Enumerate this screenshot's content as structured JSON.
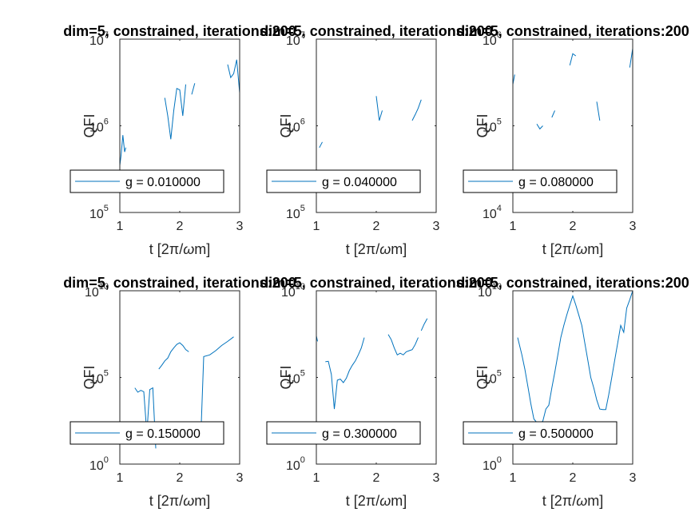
{
  "figure": {
    "background": "#ffffff",
    "axis_color": "#262626",
    "line_color": "#0072bd"
  },
  "chart_data": [
    {
      "type": "line",
      "title": "dim=5, constrained, iterations:200",
      "xlabel_text": "t [2",
      "xlabel_pi": "π",
      "xlabel_slash": "/",
      "xlabel_omega": "ω",
      "xlabel_end": "m]",
      "ylabel": "QFI",
      "xscale": "linear",
      "yscale": "log",
      "xlim": [
        1,
        3
      ],
      "ylim_exp": [
        5,
        7
      ],
      "xticks": [
        "1",
        "2",
        "3"
      ],
      "yticks": [
        {
          "base": "10",
          "exp": "5"
        },
        {
          "base": "10",
          "exp": "6"
        },
        {
          "base": "10",
          "exp": "7"
        }
      ],
      "legend": "top-left-inside",
      "grid": false,
      "series": [
        {
          "name": "g = 0.010000",
          "segments": [
            [
              [
                1.0,
                350000
              ],
              [
                1.02,
                450000
              ],
              [
                1.05,
                780000
              ],
              [
                1.08,
                500000
              ],
              [
                1.1,
                560000
              ]
            ],
            [
              [
                1.75,
                2100000
              ],
              [
                1.8,
                1300000
              ],
              [
                1.85,
                700000
              ],
              [
                1.9,
                1500000
              ],
              [
                1.95,
                2700000
              ],
              [
                2.0,
                2600000
              ],
              [
                2.05,
                1300000
              ],
              [
                2.1,
                3000000
              ]
            ],
            [
              [
                2.2,
                2300000
              ],
              [
                2.25,
                3100000
              ]
            ],
            [
              [
                2.8,
                5100000
              ],
              [
                2.85,
                3600000
              ],
              [
                2.9,
                4000000
              ],
              [
                2.95,
                5800000
              ],
              [
                3.0,
                2400000
              ]
            ]
          ]
        }
      ]
    },
    {
      "type": "line",
      "title": "dim=5, constrained, iterations:200",
      "xlabel_text": "t [2",
      "xlabel_pi": "π",
      "xlabel_slash": "/",
      "xlabel_omega": "ω",
      "xlabel_end": "m]",
      "ylabel": "QFI",
      "xscale": "linear",
      "yscale": "log",
      "xlim": [
        1,
        3
      ],
      "ylim_exp": [
        5,
        7
      ],
      "xticks": [
        "1",
        "2",
        "3"
      ],
      "yticks": [
        {
          "base": "10",
          "exp": "5"
        },
        {
          "base": "10",
          "exp": "6"
        },
        {
          "base": "10",
          "exp": "7"
        }
      ],
      "legend": "top-left-inside",
      "grid": false,
      "series": [
        {
          "name": "g = 0.040000",
          "segments": [
            [
              [
                1.05,
                560000
              ],
              [
                1.1,
                650000
              ]
            ],
            [
              [
                2.0,
                2200000
              ],
              [
                2.05,
                1150000
              ],
              [
                2.1,
                1500000
              ]
            ],
            [
              [
                2.6,
                1150000
              ],
              [
                2.65,
                1350000
              ],
              [
                2.7,
                1600000
              ],
              [
                2.75,
                2000000
              ]
            ]
          ]
        }
      ]
    },
    {
      "type": "line",
      "title": "dim=5, constrained, iterations:200",
      "xlabel_text": "t [2",
      "xlabel_pi": "π",
      "xlabel_slash": "/",
      "xlabel_omega": "ω",
      "xlabel_end": "m]",
      "ylabel": "QFI",
      "xscale": "linear",
      "yscale": "log",
      "xlim": [
        1,
        3
      ],
      "ylim_exp": [
        4,
        6
      ],
      "xticks": [
        "1",
        "2",
        "3"
      ],
      "yticks": [
        {
          "base": "10",
          "exp": "4"
        },
        {
          "base": "10",
          "exp": "5"
        },
        {
          "base": "10",
          "exp": "6"
        }
      ],
      "legend": "top-left-inside",
      "grid": false,
      "series": [
        {
          "name": "g = 0.080000",
          "segments": [
            [
              [
                1.0,
                300000
              ],
              [
                1.03,
                390000
              ]
            ],
            [
              [
                1.4,
                105000
              ],
              [
                1.45,
                92000
              ],
              [
                1.5,
                100000
              ]
            ],
            [
              [
                1.65,
                125000
              ],
              [
                1.7,
                150000
              ]
            ],
            [
              [
                1.95,
                500000
              ],
              [
                2.0,
                680000
              ],
              [
                2.05,
                640000
              ]
            ],
            [
              [
                2.4,
                190000
              ],
              [
                2.45,
                115000
              ]
            ],
            [
              [
                2.95,
                470000
              ],
              [
                3.0,
                780000
              ]
            ]
          ]
        }
      ]
    },
    {
      "type": "line",
      "title": "dim=5, constrained, iterations:200",
      "xlabel_text": "t [2",
      "xlabel_pi": "π",
      "xlabel_slash": "/",
      "xlabel_omega": "ω",
      "xlabel_end": "m]",
      "ylabel": "QFI",
      "xscale": "linear",
      "yscale": "log",
      "xlim": [
        1,
        3
      ],
      "ylim_exp": [
        0,
        10
      ],
      "xticks": [
        "1",
        "2",
        "3"
      ],
      "yticks": [
        {
          "base": "10",
          "exp": "0"
        },
        {
          "base": "10",
          "exp": "5"
        },
        {
          "base": "10",
          "exp": "10"
        }
      ],
      "legend": "top-left-inside",
      "grid": false,
      "series": [
        {
          "name": "g = 0.150000",
          "segments": [
            [
              [
                1.25,
                25000
              ],
              [
                1.3,
                14000
              ],
              [
                1.35,
                18000
              ],
              [
                1.4,
                15000
              ],
              [
                1.45,
                60
              ],
              [
                1.5,
                20000
              ],
              [
                1.55,
                25000
              ],
              [
                1.6,
                8
              ]
            ],
            [
              [
                1.65,
                300000
              ],
              [
                1.7,
                500000
              ],
              [
                1.75,
                900000
              ],
              [
                1.8,
                1300000
              ],
              [
                1.85,
                3000000
              ],
              [
                1.9,
                5000000
              ],
              [
                1.95,
                8000000
              ],
              [
                2.0,
                10000000
              ],
              [
                2.05,
                7000000
              ],
              [
                2.1,
                4000000
              ],
              [
                2.15,
                3000000
              ]
            ],
            [
              [
                2.35,
                30
              ],
              [
                2.4,
                1600000
              ],
              [
                2.5,
                2000000
              ],
              [
                2.6,
                3500000
              ],
              [
                2.7,
                7000000
              ],
              [
                2.8,
                12000000
              ],
              [
                2.9,
                22000000
              ]
            ]
          ]
        }
      ]
    },
    {
      "type": "line",
      "title": "dim=5, constrained, iterations:200",
      "xlabel_text": "t [2",
      "xlabel_pi": "π",
      "xlabel_slash": "/",
      "xlabel_omega": "ω",
      "xlabel_end": "m]",
      "ylabel": "QFI",
      "xscale": "linear",
      "yscale": "log",
      "xlim": [
        1,
        3
      ],
      "ylim_exp": [
        0,
        10
      ],
      "xticks": [
        "1",
        "2",
        "3"
      ],
      "yticks": [
        {
          "base": "10",
          "exp": "0"
        },
        {
          "base": "10",
          "exp": "5"
        },
        {
          "base": "10",
          "exp": "10"
        }
      ],
      "legend": "top-left-inside",
      "grid": false,
      "series": [
        {
          "name": "g = 0.300000",
          "segments": [
            [
              [
                1.0,
                25000000
              ],
              [
                1.02,
                12000000
              ]
            ],
            [
              [
                1.15,
                800000
              ],
              [
                1.2,
                850000
              ],
              [
                1.25,
                150000
              ],
              [
                1.3,
                1500
              ],
              [
                1.35,
                70000
              ],
              [
                1.4,
                80000
              ],
              [
                1.45,
                50000
              ],
              [
                1.5,
                90000
              ],
              [
                1.55,
                250000
              ],
              [
                1.6,
                500000
              ],
              [
                1.65,
                900000
              ],
              [
                1.7,
                2000000
              ],
              [
                1.75,
                5000000
              ],
              [
                1.8,
                20000000
              ]
            ],
            [
              [
                2.2,
                30000000
              ],
              [
                2.25,
                15000000
              ],
              [
                2.3,
                5000000
              ],
              [
                2.35,
                2000000
              ],
              [
                2.4,
                2500000
              ],
              [
                2.45,
                2000000
              ],
              [
                2.5,
                3000000
              ],
              [
                2.55,
                3500000
              ],
              [
                2.6,
                4000000
              ],
              [
                2.65,
                8000000
              ],
              [
                2.7,
                20000000
              ]
            ],
            [
              [
                2.75,
                50000000
              ],
              [
                2.8,
                120000000
              ],
              [
                2.85,
                250000000
              ]
            ]
          ]
        }
      ]
    },
    {
      "type": "line",
      "title": "dim=5, constrained, iterations:200",
      "xlabel_text": "t [2",
      "xlabel_pi": "π",
      "xlabel_slash": "/",
      "xlabel_omega": "ω",
      "xlabel_end": "m]",
      "ylabel": "QFI",
      "xscale": "linear",
      "yscale": "log",
      "xlim": [
        1,
        3
      ],
      "ylim_exp": [
        0,
        10
      ],
      "xticks": [
        "1",
        "2",
        "3"
      ],
      "yticks": [
        {
          "base": "10",
          "exp": "0"
        },
        {
          "base": "10",
          "exp": "5"
        },
        {
          "base": "10",
          "exp": "10"
        }
      ],
      "legend": "top-left-inside",
      "grid": false,
      "series": [
        {
          "name": "g = 0.500000",
          "segments": [
            [
              [
                1.08,
                20000000
              ],
              [
                1.15,
                2000000
              ],
              [
                1.2,
                300000
              ],
              [
                1.25,
                30000
              ],
              [
                1.3,
                3000
              ],
              [
                1.35,
                400
              ],
              [
                1.4,
                250
              ],
              [
                1.45,
                220
              ],
              [
                1.5,
                300
              ],
              [
                1.55,
                1500
              ],
              [
                1.6,
                2500
              ],
              [
                1.65,
                25000
              ],
              [
                1.7,
                200000
              ],
              [
                1.75,
                2000000
              ],
              [
                1.8,
                20000000
              ],
              [
                1.85,
                100000000
              ],
              [
                1.9,
                400000000
              ],
              [
                1.95,
                1500000000
              ],
              [
                2.0,
                5000000000
              ],
              [
                2.05,
                1500000000
              ],
              [
                2.1,
                400000000
              ],
              [
                2.15,
                100000000
              ],
              [
                2.2,
                10000000
              ],
              [
                2.25,
                1000000
              ],
              [
                2.3,
                100000
              ],
              [
                2.35,
                25000
              ],
              [
                2.4,
                5000
              ],
              [
                2.45,
                1500
              ],
              [
                2.5,
                1400
              ],
              [
                2.55,
                1400
              ],
              [
                2.6,
                10000
              ],
              [
                2.65,
                100000
              ],
              [
                2.7,
                1000000
              ],
              [
                2.75,
                10000000
              ],
              [
                2.8,
                100000000
              ],
              [
                2.85,
                40000000
              ],
              [
                2.9,
                1000000000
              ],
              [
                2.95,
                3000000000
              ],
              [
                3.0,
                20000000000
              ]
            ]
          ]
        }
      ]
    }
  ]
}
